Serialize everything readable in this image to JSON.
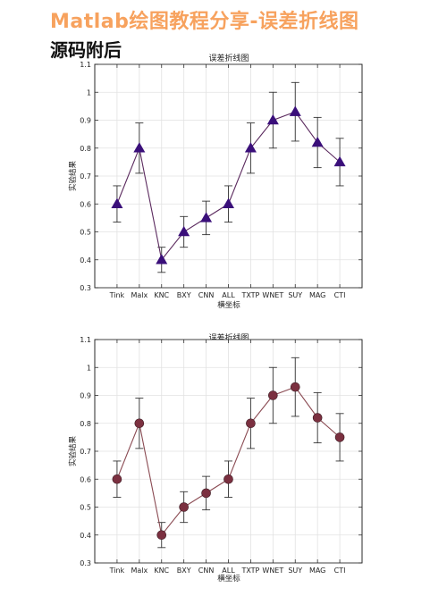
{
  "post": {
    "title": "Matlab绘图教程分享-误差折线图",
    "subtitle": "源码附后"
  },
  "chart_data": [
    {
      "type": "line",
      "title": "误差折线图",
      "xlabel": "横坐标",
      "ylabel": "实验结果",
      "categories": [
        "Tink",
        "Malx",
        "KNC",
        "BXY",
        "CNN",
        "ALL",
        "TXTP",
        "WNET",
        "SUY",
        "MAG",
        "CTI"
      ],
      "series": [
        {
          "values": [
            0.6,
            0.8,
            0.4,
            0.5,
            0.55,
            0.6,
            0.8,
            0.9,
            0.93,
            0.82,
            0.75
          ],
          "error_lower": [
            0.535,
            0.71,
            0.355,
            0.445,
            0.49,
            0.535,
            0.71,
            0.8,
            0.825,
            0.73,
            0.665
          ],
          "error_upper": [
            0.665,
            0.89,
            0.445,
            0.555,
            0.61,
            0.665,
            0.89,
            1.0,
            1.035,
            0.91,
            0.835
          ],
          "marker": "triangle",
          "marker_color": "#3a0f7a",
          "line_color": "#5b2a5e"
        }
      ],
      "ylim": [
        0.3,
        1.1
      ],
      "yticks": [
        "0.3",
        "0.4",
        "0.5",
        "0.6",
        "0.7",
        "0.8",
        "0.9",
        "1",
        "1.1"
      ],
      "grid": true,
      "legend": "none"
    },
    {
      "type": "line",
      "title": "误差折线图",
      "xlabel": "横坐标",
      "ylabel": "实验结果",
      "categories": [
        "Tink",
        "Malx",
        "KNC",
        "BXY",
        "CNN",
        "ALL",
        "TXTP",
        "WNET",
        "SUY",
        "MAG",
        "CTI"
      ],
      "series": [
        {
          "values": [
            0.6,
            0.8,
            0.4,
            0.5,
            0.55,
            0.6,
            0.8,
            0.9,
            0.93,
            0.82,
            0.75
          ],
          "error_lower": [
            0.535,
            0.71,
            0.355,
            0.445,
            0.49,
            0.535,
            0.71,
            0.8,
            0.825,
            0.73,
            0.665
          ],
          "error_upper": [
            0.665,
            0.89,
            0.445,
            0.555,
            0.61,
            0.665,
            0.89,
            1.0,
            1.035,
            0.91,
            0.835
          ],
          "marker": "circle",
          "marker_color": "#7b3040",
          "line_color": "#8a4a52"
        }
      ],
      "ylim": [
        0.3,
        1.1
      ],
      "yticks": [
        "0.3",
        "0.4",
        "0.5",
        "0.6",
        "0.7",
        "0.8",
        "0.9",
        "1",
        "1.1"
      ],
      "grid": true,
      "legend": "none"
    }
  ]
}
